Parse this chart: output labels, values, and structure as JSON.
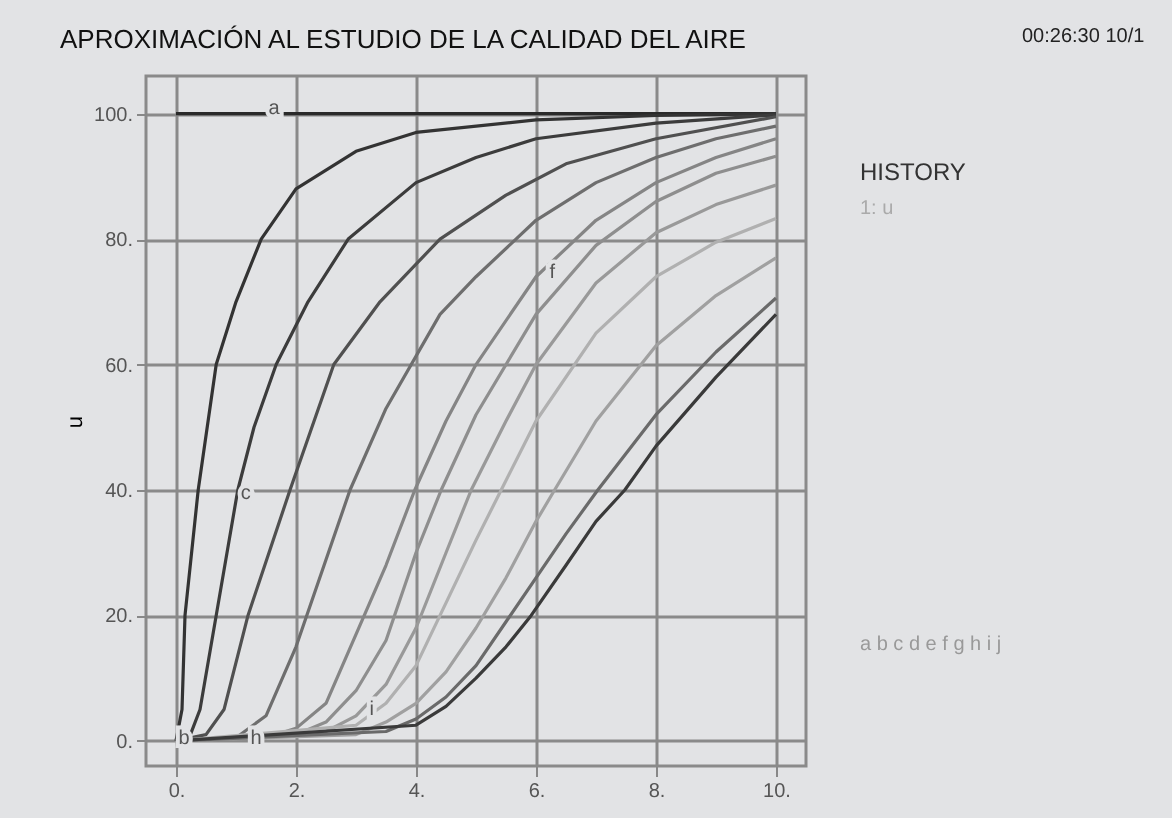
{
  "chart_data": {
    "type": "line",
    "title": "APROXIMACIÓN AL ESTUDIO DE LA CALIDAD DEL AIRE",
    "ylabel": "u",
    "xlim": [
      -0.5,
      10.5
    ],
    "ylim": [
      -4,
      106
    ],
    "xticks": [
      {
        "value": 0,
        "label": "0."
      },
      {
        "value": 2,
        "label": "2."
      },
      {
        "value": 4,
        "label": "4."
      },
      {
        "value": 6,
        "label": "6."
      },
      {
        "value": 8,
        "label": "8."
      },
      {
        "value": 10,
        "label": "10."
      }
    ],
    "yticks": [
      {
        "value": 0,
        "label": "0."
      },
      {
        "value": 20,
        "label": "20."
      },
      {
        "value": 40,
        "label": "40."
      },
      {
        "value": 60,
        "label": "60."
      },
      {
        "value": 80,
        "label": "80."
      },
      {
        "value": 100,
        "label": "100."
      }
    ],
    "grid": true,
    "marker": "none",
    "line_style": "solid",
    "series": [
      {
        "color": "#2a2a2a",
        "x": [
          0,
          10
        ],
        "values": [
          100,
          100
        ]
      },
      {
        "color": "#333333",
        "x": [
          0,
          0.1,
          0.15,
          0.37,
          0.67,
          1,
          1.42,
          2,
          3,
          4,
          6,
          8,
          10
        ],
        "values": [
          0,
          5,
          20,
          40,
          60,
          70,
          80,
          88,
          94,
          97,
          99,
          99.7,
          100
        ]
      },
      {
        "color": "#3c3c3c",
        "x": [
          0,
          0.2,
          0.4,
          0.67,
          1.03,
          1.3,
          1.67,
          2.2,
          2.87,
          4,
          5,
          6,
          8,
          10
        ],
        "values": [
          0,
          0,
          5,
          20,
          40,
          50,
          60,
          70,
          80,
          89,
          93,
          96,
          98.5,
          99.8
        ]
      },
      {
        "color": "#505050",
        "x": [
          0,
          0.5,
          0.8,
          1.2,
          1.9,
          2.63,
          3.4,
          4.4,
          5.5,
          6.5,
          8,
          10
        ],
        "values": [
          0,
          1,
          5,
          20,
          40,
          60,
          70,
          80,
          87,
          92,
          96,
          99.5
        ]
      },
      {
        "color": "#6e6e6e",
        "x": [
          0,
          1,
          1.5,
          2,
          2.9,
          3.5,
          4.4,
          5,
          6,
          7,
          8,
          9,
          10
        ],
        "values": [
          0,
          0.5,
          4,
          15,
          40,
          53,
          68,
          74,
          83,
          89,
          93,
          96,
          98
        ]
      },
      {
        "color": "#858585",
        "x": [
          0,
          1.5,
          2,
          2.5,
          3,
          3.5,
          3.98,
          4.5,
          5,
          6,
          7,
          8,
          9,
          10
        ],
        "values": [
          0,
          0.5,
          2,
          6,
          17,
          28,
          40,
          51,
          60,
          74,
          83,
          89,
          93,
          96
        ]
      },
      {
        "color": "#8e8e8e",
        "x": [
          0,
          2,
          2.5,
          3,
          3.5,
          4,
          4.42,
          5,
          6,
          7,
          8,
          9,
          10
        ],
        "values": [
          0,
          1,
          3,
          8,
          16,
          30,
          40,
          52,
          68,
          79,
          86,
          90.5,
          93.2
        ]
      },
      {
        "color": "#999999",
        "x": [
          0,
          2.5,
          3,
          3.5,
          4,
          4.5,
          4.92,
          5.5,
          6,
          7,
          8,
          9,
          10
        ],
        "values": [
          0,
          1.5,
          4,
          9,
          18,
          30,
          40,
          51,
          60,
          73,
          81,
          85.5,
          88.6
        ]
      },
      {
        "color": "#b0b0b0",
        "x": [
          0,
          3,
          3.5,
          4,
          4.5,
          5,
          5.42,
          6,
          7,
          8,
          9,
          10
        ],
        "values": [
          0,
          2.5,
          6,
          12,
          22,
          32,
          40,
          51,
          65,
          74,
          79.5,
          83.3
        ]
      },
      {
        "color": "#a0a0a0",
        "x": [
          0,
          3,
          3.5,
          4,
          4.5,
          5,
          5.5,
          6,
          6.31,
          7,
          8,
          9,
          10
        ],
        "values": [
          0,
          1,
          3,
          6,
          11,
          18,
          26,
          35,
          40,
          51,
          63,
          71,
          77
        ]
      },
      {
        "color": "#6a6a6a",
        "x": [
          0,
          3.5,
          4,
          4.5,
          5,
          5.5,
          6,
          6.5,
          7.03,
          8,
          9,
          10
        ],
        "values": [
          0,
          1.5,
          3.5,
          7,
          12,
          19,
          26,
          33,
          40,
          52,
          62,
          70.6
        ]
      },
      {
        "color": "#3a3a3a",
        "x": [
          0,
          4,
          4.5,
          5,
          5.5,
          5.92,
          6.5,
          7,
          7.48,
          8,
          9,
          10
        ],
        "values": [
          0,
          2.5,
          5.5,
          10,
          15,
          20,
          28,
          35,
          40,
          47,
          58,
          68
        ]
      }
    ],
    "annotations": [
      {
        "text": "a",
        "x": 1.5,
        "y": 100
      },
      {
        "text": "b",
        "x": 0,
        "y": -0.5
      },
      {
        "text": "c",
        "x": 1.03,
        "y": 38.5
      },
      {
        "text": "f",
        "x": 6.14,
        "y": 73.8
      },
      {
        "text": "h",
        "x": 1.2,
        "y": -0.5
      },
      {
        "text": "i",
        "x": 3.13,
        "y": 4.2
      },
      "00:26:30 10/1",
      "HISTORY",
      "1: u",
      "a b c d e f g h i j"
    ]
  }
}
